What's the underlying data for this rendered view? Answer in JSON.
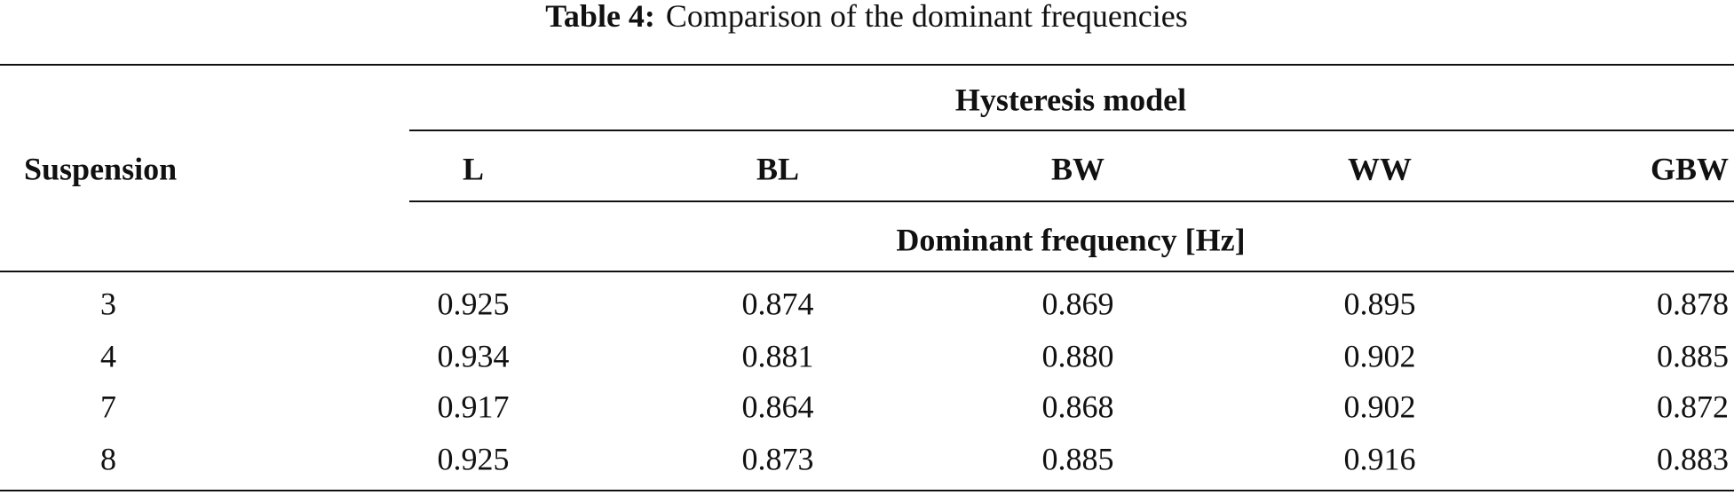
{
  "title": {
    "label": "Table 4:",
    "text": "Comparison of the dominant frequencies"
  },
  "table": {
    "row_header": "Suspension",
    "group_header": "Hysteresis model",
    "columns": [
      "L",
      "BL",
      "BW",
      "WW",
      "GBW"
    ],
    "unit_header": "Dominant frequency [Hz]",
    "rows": [
      [
        "3",
        "0.925",
        "0.874",
        "0.869",
        "0.895",
        "0.878"
      ],
      [
        "4",
        "0.934",
        "0.881",
        "0.880",
        "0.902",
        "0.885"
      ],
      [
        "7",
        "0.917",
        "0.864",
        "0.868",
        "0.902",
        "0.872"
      ],
      [
        "8",
        "0.925",
        "0.873",
        "0.885",
        "0.916",
        "0.883"
      ]
    ]
  }
}
